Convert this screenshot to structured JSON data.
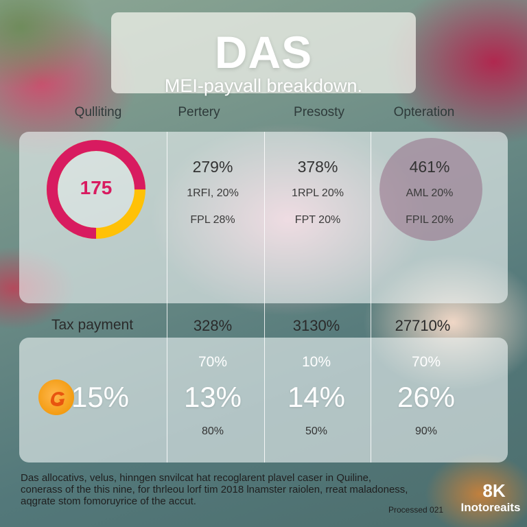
{
  "header": {
    "title": "DAS",
    "subtitle": "MEI-payvall breakdown."
  },
  "columns": [
    "Qulliting",
    "Pertery",
    "Presosty",
    "Opteration"
  ],
  "donut": {
    "value": "175",
    "colors": {
      "primary": "#d81b60",
      "secondary": "#ffc107"
    },
    "primary_fraction": 0.75
  },
  "top_cells": [
    {
      "big": "279%",
      "line1": "1RFI, 20%",
      "line2": "FPL 28%"
    },
    {
      "big": "378%",
      "line1": "1RPL 20%",
      "line2": "FPT 20%"
    },
    {
      "big": "461%",
      "line1": "AML 20%",
      "line2": "FPIL 20%"
    }
  ],
  "tax_row": {
    "label": "Tax payment",
    "values": [
      "328%",
      "3130%",
      "27710%"
    ]
  },
  "bottom": {
    "first": "15%",
    "cells": [
      {
        "mid": "70%",
        "huge": "13%",
        "low": "80%"
      },
      {
        "mid": "10%",
        "huge": "14%",
        "low": "50%"
      },
      {
        "mid": "70%",
        "huge": "26%",
        "low": "90%"
      }
    ]
  },
  "footer": {
    "lines": [
      "Das allocativs, velus, hinngen snvilcat hat recoglarent plavel caser in Quiline,",
      "conerass of the this nine, for thrleou lorf tim 2018 lnamster raiolen, rreat maladoness,",
      "aqgrate stom fomoruyrice of the accut."
    ],
    "processed": "Processed 021",
    "badge": "8K",
    "badge_sub": "Inotoreaits"
  }
}
